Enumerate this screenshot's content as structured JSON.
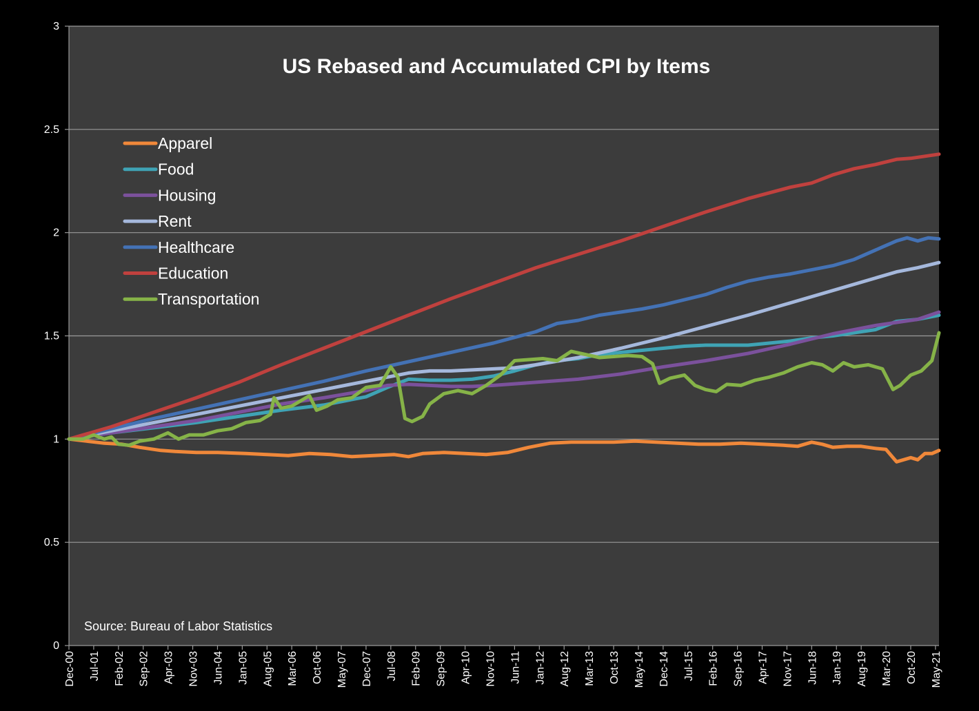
{
  "chart_data": {
    "type": "line",
    "title": "US Rebased and Accumulated CPI by Items",
    "source": "Source: Bureau of Labor Statistics",
    "xlabel": "",
    "ylabel": "",
    "ylim": [
      0,
      3
    ],
    "y_ticks": [
      "0",
      "0.5",
      "1",
      "1.5",
      "2",
      "2.5",
      "3"
    ],
    "y_tick_values": [
      0,
      0.5,
      1,
      1.5,
      2,
      2.5,
      3
    ],
    "x_ticks": [
      "Dec-00",
      "Jul-01",
      "Feb-02",
      "Sep-02",
      "Apr-03",
      "Nov-03",
      "Jun-04",
      "Jan-05",
      "Aug-05",
      "Mar-06",
      "Oct-06",
      "May-07",
      "Dec-07",
      "Jul-08",
      "Feb-09",
      "Sep-09",
      "Apr-10",
      "Nov-10",
      "Jun-11",
      "Jan-12",
      "Aug-12",
      "Mar-13",
      "Oct-13",
      "May-14",
      "Dec-14",
      "Jul-15",
      "Feb-16",
      "Sep-16",
      "Apr-17",
      "Nov-17",
      "Jun-18",
      "Jan-19",
      "Aug-19",
      "Mar-20",
      "Oct-20",
      "May-21"
    ],
    "x_tick_months": [
      0,
      7,
      14,
      21,
      28,
      35,
      42,
      49,
      56,
      63,
      70,
      77,
      84,
      91,
      98,
      105,
      112,
      119,
      126,
      133,
      140,
      147,
      154,
      161,
      168,
      175,
      182,
      189,
      196,
      203,
      210,
      217,
      224,
      231,
      238,
      245
    ],
    "x_range_months": [
      0,
      246
    ],
    "legend_position": "top-left",
    "grid": true,
    "series": [
      {
        "name": "Apparel",
        "color": "#f0883a",
        "points": [
          [
            0,
            1.0
          ],
          [
            5,
            0.99
          ],
          [
            10,
            0.98
          ],
          [
            15,
            0.975
          ],
          [
            20,
            0.96
          ],
          [
            26,
            0.945
          ],
          [
            30,
            0.94
          ],
          [
            36,
            0.935
          ],
          [
            42,
            0.935
          ],
          [
            50,
            0.93
          ],
          [
            56,
            0.925
          ],
          [
            62,
            0.92
          ],
          [
            68,
            0.93
          ],
          [
            74,
            0.925
          ],
          [
            80,
            0.915
          ],
          [
            86,
            0.92
          ],
          [
            92,
            0.925
          ],
          [
            96,
            0.915
          ],
          [
            100,
            0.93
          ],
          [
            106,
            0.935
          ],
          [
            112,
            0.93
          ],
          [
            118,
            0.925
          ],
          [
            124,
            0.935
          ],
          [
            130,
            0.96
          ],
          [
            136,
            0.98
          ],
          [
            142,
            0.985
          ],
          [
            148,
            0.985
          ],
          [
            154,
            0.985
          ],
          [
            160,
            0.99
          ],
          [
            166,
            0.985
          ],
          [
            172,
            0.98
          ],
          [
            178,
            0.975
          ],
          [
            184,
            0.975
          ],
          [
            190,
            0.98
          ],
          [
            196,
            0.975
          ],
          [
            202,
            0.97
          ],
          [
            206,
            0.965
          ],
          [
            210,
            0.985
          ],
          [
            213,
            0.975
          ],
          [
            216,
            0.96
          ],
          [
            220,
            0.965
          ],
          [
            224,
            0.965
          ],
          [
            228,
            0.955
          ],
          [
            231,
            0.95
          ],
          [
            234,
            0.89
          ],
          [
            236,
            0.9
          ],
          [
            238,
            0.91
          ],
          [
            240,
            0.9
          ],
          [
            242,
            0.93
          ],
          [
            244,
            0.93
          ],
          [
            246,
            0.945
          ]
        ]
      },
      {
        "name": "Food",
        "color": "#3fa3b5",
        "points": [
          [
            0,
            1.0
          ],
          [
            12,
            1.03
          ],
          [
            24,
            1.055
          ],
          [
            36,
            1.08
          ],
          [
            48,
            1.11
          ],
          [
            60,
            1.14
          ],
          [
            72,
            1.165
          ],
          [
            84,
            1.205
          ],
          [
            90,
            1.25
          ],
          [
            96,
            1.29
          ],
          [
            102,
            1.285
          ],
          [
            108,
            1.285
          ],
          [
            114,
            1.29
          ],
          [
            120,
            1.305
          ],
          [
            126,
            1.33
          ],
          [
            132,
            1.36
          ],
          [
            138,
            1.38
          ],
          [
            144,
            1.39
          ],
          [
            150,
            1.41
          ],
          [
            156,
            1.42
          ],
          [
            162,
            1.43
          ],
          [
            168,
            1.44
          ],
          [
            174,
            1.45
          ],
          [
            180,
            1.455
          ],
          [
            186,
            1.455
          ],
          [
            192,
            1.455
          ],
          [
            198,
            1.465
          ],
          [
            204,
            1.475
          ],
          [
            210,
            1.49
          ],
          [
            216,
            1.5
          ],
          [
            222,
            1.515
          ],
          [
            228,
            1.53
          ],
          [
            231,
            1.55
          ],
          [
            234,
            1.57
          ],
          [
            240,
            1.58
          ],
          [
            246,
            1.6
          ]
        ]
      },
      {
        "name": "Housing",
        "color": "#7b519c",
        "points": [
          [
            0,
            1.0
          ],
          [
            12,
            1.03
          ],
          [
            24,
            1.06
          ],
          [
            36,
            1.09
          ],
          [
            48,
            1.13
          ],
          [
            60,
            1.17
          ],
          [
            72,
            1.2
          ],
          [
            84,
            1.235
          ],
          [
            90,
            1.26
          ],
          [
            96,
            1.265
          ],
          [
            102,
            1.26
          ],
          [
            108,
            1.255
          ],
          [
            114,
            1.255
          ],
          [
            120,
            1.26
          ],
          [
            132,
            1.275
          ],
          [
            144,
            1.29
          ],
          [
            156,
            1.315
          ],
          [
            168,
            1.35
          ],
          [
            180,
            1.38
          ],
          [
            192,
            1.415
          ],
          [
            204,
            1.46
          ],
          [
            216,
            1.51
          ],
          [
            228,
            1.55
          ],
          [
            234,
            1.565
          ],
          [
            240,
            1.58
          ],
          [
            246,
            1.615
          ]
        ]
      },
      {
        "name": "Rent",
        "color": "#a5b8dc",
        "points": [
          [
            0,
            1.0
          ],
          [
            12,
            1.04
          ],
          [
            24,
            1.08
          ],
          [
            36,
            1.12
          ],
          [
            48,
            1.16
          ],
          [
            60,
            1.2
          ],
          [
            72,
            1.24
          ],
          [
            84,
            1.28
          ],
          [
            96,
            1.32
          ],
          [
            102,
            1.33
          ],
          [
            108,
            1.33
          ],
          [
            114,
            1.335
          ],
          [
            120,
            1.34
          ],
          [
            126,
            1.345
          ],
          [
            132,
            1.36
          ],
          [
            144,
            1.395
          ],
          [
            156,
            1.44
          ],
          [
            168,
            1.49
          ],
          [
            180,
            1.545
          ],
          [
            192,
            1.6
          ],
          [
            204,
            1.66
          ],
          [
            216,
            1.72
          ],
          [
            228,
            1.78
          ],
          [
            234,
            1.81
          ],
          [
            240,
            1.83
          ],
          [
            246,
            1.855
          ]
        ]
      },
      {
        "name": "Healthcare",
        "color": "#4472b5",
        "points": [
          [
            0,
            1.0
          ],
          [
            12,
            1.05
          ],
          [
            24,
            1.1
          ],
          [
            36,
            1.145
          ],
          [
            48,
            1.19
          ],
          [
            60,
            1.235
          ],
          [
            72,
            1.28
          ],
          [
            84,
            1.33
          ],
          [
            96,
            1.375
          ],
          [
            108,
            1.42
          ],
          [
            120,
            1.465
          ],
          [
            132,
            1.52
          ],
          [
            138,
            1.56
          ],
          [
            144,
            1.575
          ],
          [
            150,
            1.6
          ],
          [
            156,
            1.615
          ],
          [
            162,
            1.63
          ],
          [
            168,
            1.65
          ],
          [
            174,
            1.675
          ],
          [
            180,
            1.7
          ],
          [
            186,
            1.735
          ],
          [
            192,
            1.765
          ],
          [
            198,
            1.785
          ],
          [
            204,
            1.8
          ],
          [
            210,
            1.82
          ],
          [
            216,
            1.84
          ],
          [
            222,
            1.87
          ],
          [
            226,
            1.9
          ],
          [
            230,
            1.93
          ],
          [
            234,
            1.96
          ],
          [
            237,
            1.975
          ],
          [
            240,
            1.96
          ],
          [
            243,
            1.975
          ],
          [
            246,
            1.97
          ]
        ]
      },
      {
        "name": "Education",
        "color": "#c0413e",
        "points": [
          [
            0,
            1.0
          ],
          [
            12,
            1.06
          ],
          [
            24,
            1.13
          ],
          [
            36,
            1.2
          ],
          [
            48,
            1.275
          ],
          [
            60,
            1.36
          ],
          [
            72,
            1.44
          ],
          [
            84,
            1.52
          ],
          [
            96,
            1.6
          ],
          [
            108,
            1.68
          ],
          [
            120,
            1.755
          ],
          [
            132,
            1.83
          ],
          [
            144,
            1.895
          ],
          [
            156,
            1.96
          ],
          [
            168,
            2.03
          ],
          [
            180,
            2.1
          ],
          [
            192,
            2.165
          ],
          [
            204,
            2.22
          ],
          [
            210,
            2.24
          ],
          [
            216,
            2.28
          ],
          [
            222,
            2.31
          ],
          [
            228,
            2.33
          ],
          [
            234,
            2.355
          ],
          [
            238,
            2.36
          ],
          [
            242,
            2.37
          ],
          [
            246,
            2.38
          ]
        ]
      },
      {
        "name": "Transportation",
        "color": "#86b348",
        "points": [
          [
            0,
            1.0
          ],
          [
            4,
            1.0
          ],
          [
            7,
            1.02
          ],
          [
            10,
            1.0
          ],
          [
            12,
            1.01
          ],
          [
            14,
            0.975
          ],
          [
            17,
            0.97
          ],
          [
            20,
            0.99
          ],
          [
            24,
            1.0
          ],
          [
            28,
            1.03
          ],
          [
            31,
            1.0
          ],
          [
            34,
            1.02
          ],
          [
            38,
            1.02
          ],
          [
            42,
            1.04
          ],
          [
            46,
            1.05
          ],
          [
            50,
            1.08
          ],
          [
            54,
            1.09
          ],
          [
            57,
            1.12
          ],
          [
            58,
            1.2
          ],
          [
            60,
            1.15
          ],
          [
            63,
            1.16
          ],
          [
            66,
            1.19
          ],
          [
            68,
            1.21
          ],
          [
            70,
            1.14
          ],
          [
            73,
            1.16
          ],
          [
            76,
            1.19
          ],
          [
            80,
            1.2
          ],
          [
            84,
            1.25
          ],
          [
            88,
            1.26
          ],
          [
            91,
            1.35
          ],
          [
            93,
            1.3
          ],
          [
            95,
            1.1
          ],
          [
            97,
            1.085
          ],
          [
            100,
            1.11
          ],
          [
            102,
            1.17
          ],
          [
            106,
            1.22
          ],
          [
            110,
            1.235
          ],
          [
            114,
            1.22
          ],
          [
            118,
            1.26
          ],
          [
            122,
            1.31
          ],
          [
            126,
            1.38
          ],
          [
            130,
            1.385
          ],
          [
            134,
            1.39
          ],
          [
            138,
            1.38
          ],
          [
            142,
            1.425
          ],
          [
            146,
            1.41
          ],
          [
            150,
            1.395
          ],
          [
            154,
            1.4
          ],
          [
            158,
            1.405
          ],
          [
            162,
            1.4
          ],
          [
            165,
            1.365
          ],
          [
            167,
            1.27
          ],
          [
            170,
            1.295
          ],
          [
            174,
            1.31
          ],
          [
            177,
            1.26
          ],
          [
            180,
            1.24
          ],
          [
            183,
            1.23
          ],
          [
            186,
            1.265
          ],
          [
            190,
            1.26
          ],
          [
            194,
            1.285
          ],
          [
            198,
            1.3
          ],
          [
            202,
            1.32
          ],
          [
            206,
            1.35
          ],
          [
            210,
            1.37
          ],
          [
            213,
            1.36
          ],
          [
            216,
            1.33
          ],
          [
            219,
            1.37
          ],
          [
            222,
            1.35
          ],
          [
            226,
            1.36
          ],
          [
            230,
            1.34
          ],
          [
            233,
            1.24
          ],
          [
            235,
            1.26
          ],
          [
            238,
            1.31
          ],
          [
            241,
            1.33
          ],
          [
            244,
            1.38
          ],
          [
            246,
            1.515
          ]
        ]
      }
    ]
  }
}
